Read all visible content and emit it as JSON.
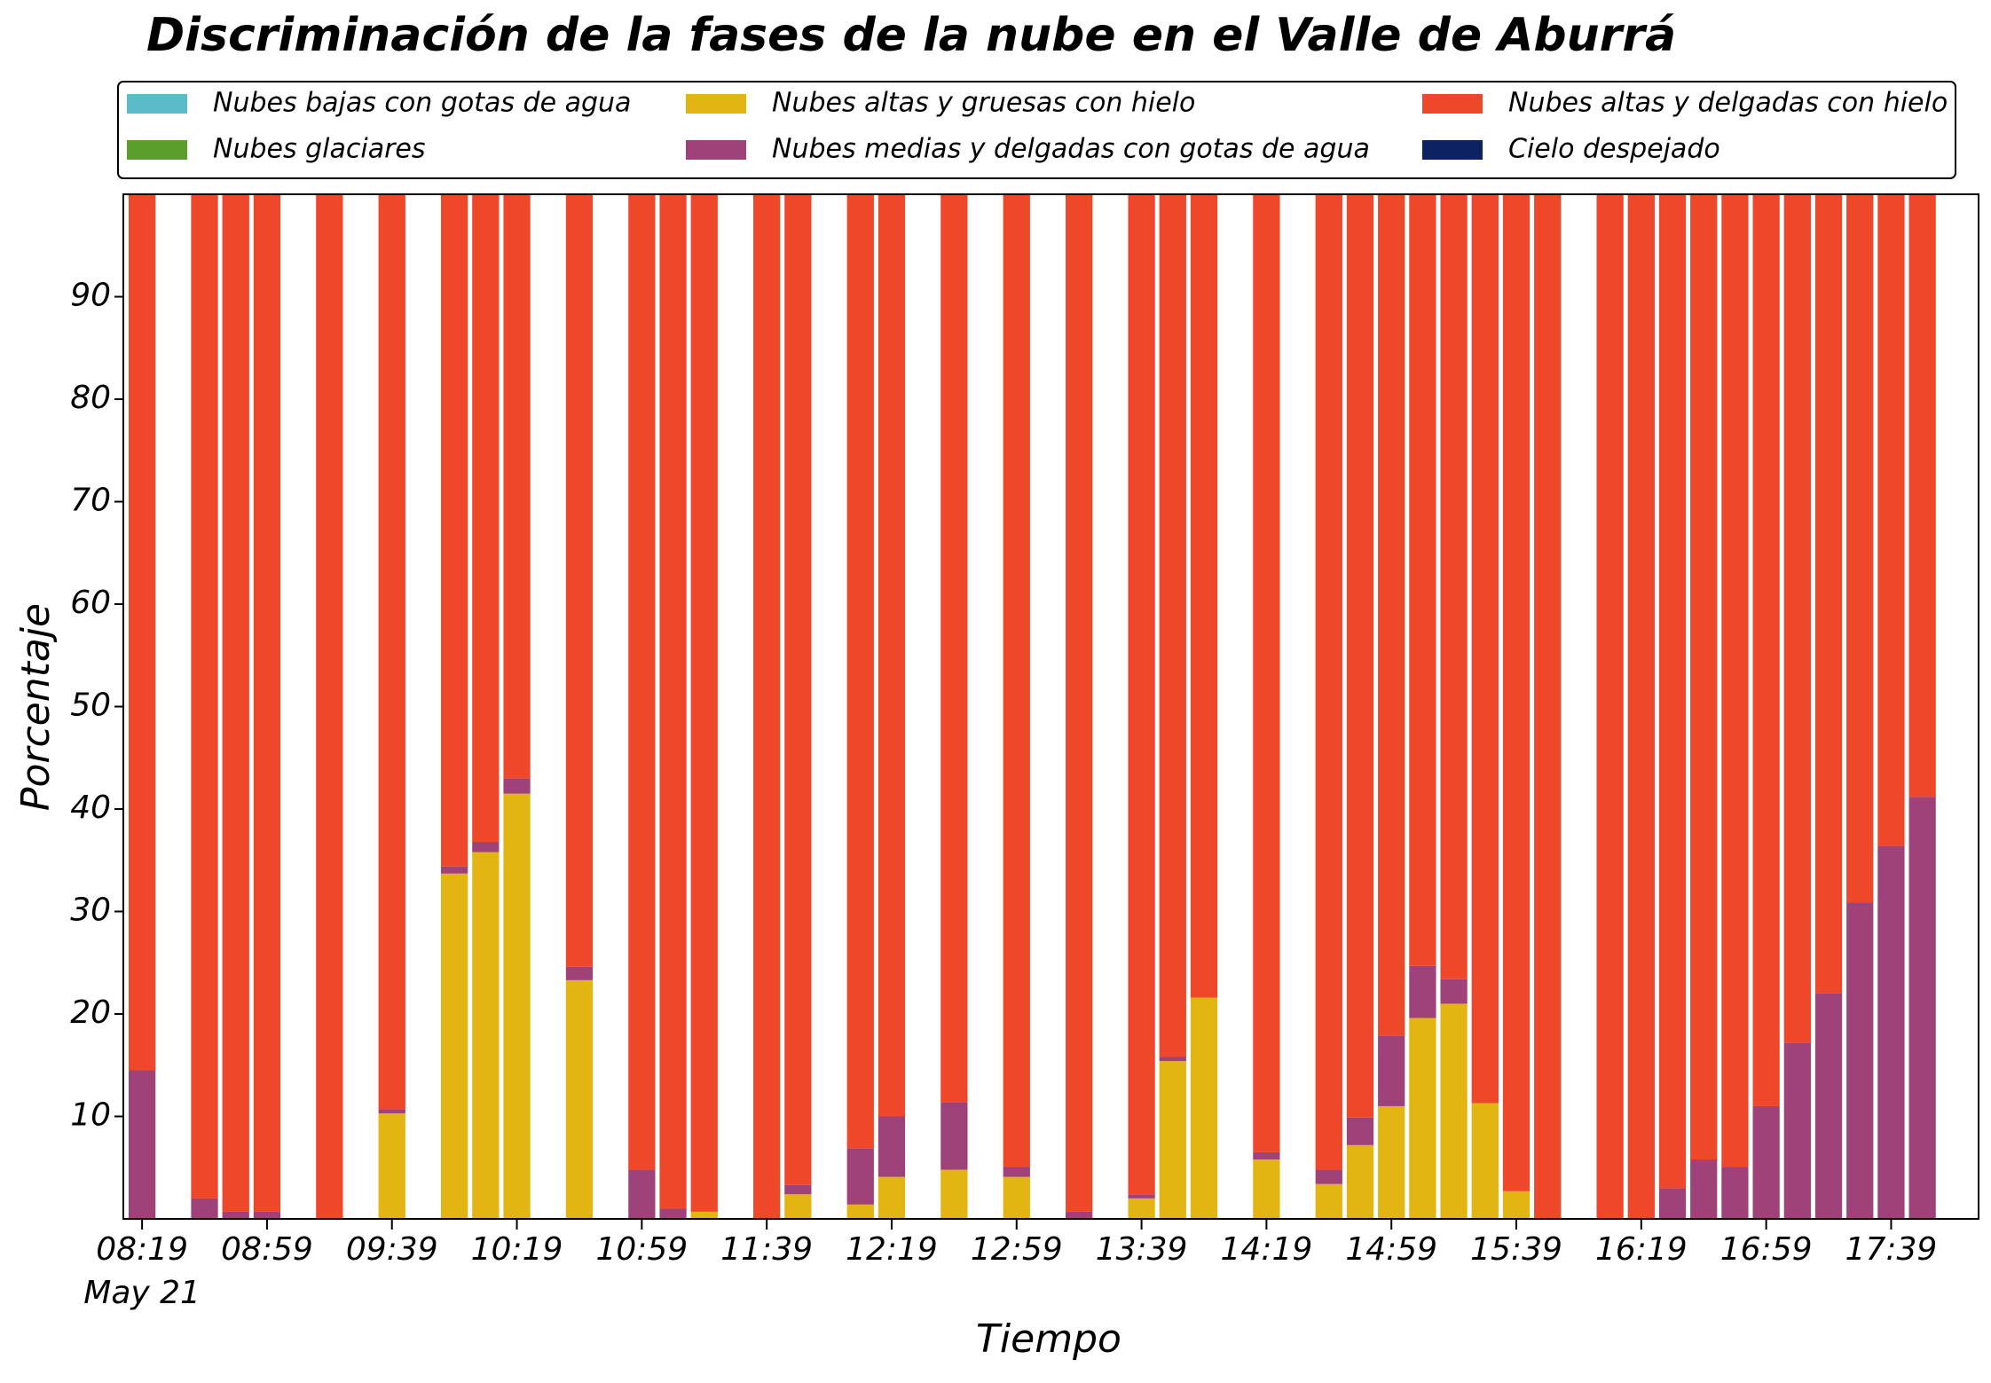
{
  "chart_data": {
    "type": "stacked_bar",
    "title": "Discriminación de la fases de la nube en el Valle de Aburrá",
    "x_label": "Tiempo",
    "y_label": "Porcentaje",
    "date_label": "May 21",
    "x": [
      "08:19",
      "08:39",
      "08:49",
      "08:59",
      "09:19",
      "09:39",
      "09:59",
      "10:09",
      "10:19",
      "10:39",
      "10:59",
      "11:09",
      "11:19",
      "11:39",
      "11:49",
      "12:09",
      "12:19",
      "12:39",
      "12:59",
      "13:19",
      "13:39",
      "13:49",
      "13:59",
      "14:19",
      "14:39",
      "14:49",
      "14:59",
      "15:09",
      "15:19",
      "15:29",
      "15:39",
      "15:49",
      "16:09",
      "16:19",
      "16:29",
      "16:39",
      "16:49",
      "16:59",
      "17:09",
      "17:19",
      "17:29",
      "17:39",
      "17:49"
    ],
    "xlim": [
      "08:13",
      "18:07"
    ],
    "xticks": [
      "08:19",
      "08:59",
      "09:39",
      "10:19",
      "10:59",
      "11:39",
      "12:19",
      "12:59",
      "13:39",
      "14:19",
      "14:59",
      "15:39",
      "16:19",
      "16:59",
      "17:39"
    ],
    "ylim": [
      0,
      100
    ],
    "yticks": [
      10,
      20,
      30,
      40,
      50,
      60,
      70,
      80,
      90
    ],
    "legend": "top",
    "series": [
      {
        "name": "Nubes bajas con gotas de agua",
        "color": "#5bbcc8",
        "values": [
          0,
          0,
          0,
          0,
          0,
          0,
          0,
          0,
          0,
          0,
          0,
          0,
          0,
          0,
          0,
          0,
          0,
          0,
          0,
          0,
          0,
          0,
          0,
          0,
          0,
          0,
          0,
          0,
          0,
          0,
          0,
          0,
          0,
          0,
          0,
          0,
          0,
          0,
          0,
          0,
          0,
          0,
          0
        ]
      },
      {
        "name": "Nubes glaciares",
        "color": "#5b9e2c",
        "values": [
          0,
          0,
          0,
          0,
          0,
          0,
          0,
          0,
          0,
          0,
          0,
          0,
          0,
          0,
          0,
          0,
          0,
          0,
          0,
          0,
          0,
          0,
          0,
          0,
          0,
          0,
          0,
          0,
          0,
          0,
          0,
          0,
          0,
          0,
          0,
          0,
          0,
          0,
          0,
          0,
          0,
          0,
          0
        ]
      },
      {
        "name": "Nubes altas y gruesas con hielo",
        "color": "#e3b512",
        "values": [
          0,
          0,
          0,
          0,
          0,
          10.3,
          33.7,
          35.8,
          41.5,
          23.3,
          0,
          0,
          0.7,
          0,
          2.4,
          1.4,
          4.1,
          4.8,
          4.1,
          0,
          2,
          15.4,
          21.6,
          5.8,
          3.4,
          7.2,
          11,
          19.6,
          21,
          11.3,
          2.7,
          0,
          0,
          0,
          0,
          0,
          0,
          0,
          0,
          0,
          0,
          0,
          0
        ]
      },
      {
        "name": "Nubes medias y delgadas con gotas de agua",
        "color": "#a0427a",
        "values": [
          14.5,
          2,
          0.7,
          0.7,
          0,
          0.4,
          0.7,
          1,
          1.5,
          1.3,
          4.8,
          1,
          0,
          0,
          0.9,
          5.5,
          5.9,
          6.6,
          1,
          0.7,
          0.4,
          0.4,
          0,
          0.7,
          1.4,
          2.7,
          6.9,
          5.1,
          2.4,
          0,
          0,
          0,
          0,
          0,
          3,
          5.8,
          5.1,
          11,
          17.2,
          22,
          30.9,
          36.4,
          41.2
        ]
      },
      {
        "name": "Nubes altas y delgadas con hielo",
        "color": "#ee472a",
        "values": [
          85.5,
          98,
          99.3,
          99.3,
          100,
          89.3,
          65.6,
          63.2,
          57,
          75.4,
          95.2,
          99,
          99.3,
          100,
          96.7,
          93.1,
          90,
          88.6,
          94.9,
          99.3,
          97.6,
          84.2,
          78.4,
          93.5,
          95.2,
          90.1,
          82.1,
          75.3,
          76.6,
          88.7,
          97.3,
          100,
          100,
          100,
          97,
          94.2,
          94.9,
          89,
          82.8,
          78,
          69.1,
          63.6,
          58.8
        ]
      },
      {
        "name": "Cielo despejado",
        "color": "#0c2263",
        "values": [
          0,
          0,
          0,
          0,
          0,
          0,
          0,
          0,
          0,
          0,
          0,
          0,
          0,
          0,
          0,
          0,
          0,
          0,
          0,
          0,
          0,
          0,
          0,
          0,
          0,
          0,
          0,
          0,
          0,
          0,
          0,
          0,
          0,
          0,
          0,
          0,
          0,
          0,
          0,
          0,
          0,
          0,
          0
        ]
      }
    ]
  }
}
